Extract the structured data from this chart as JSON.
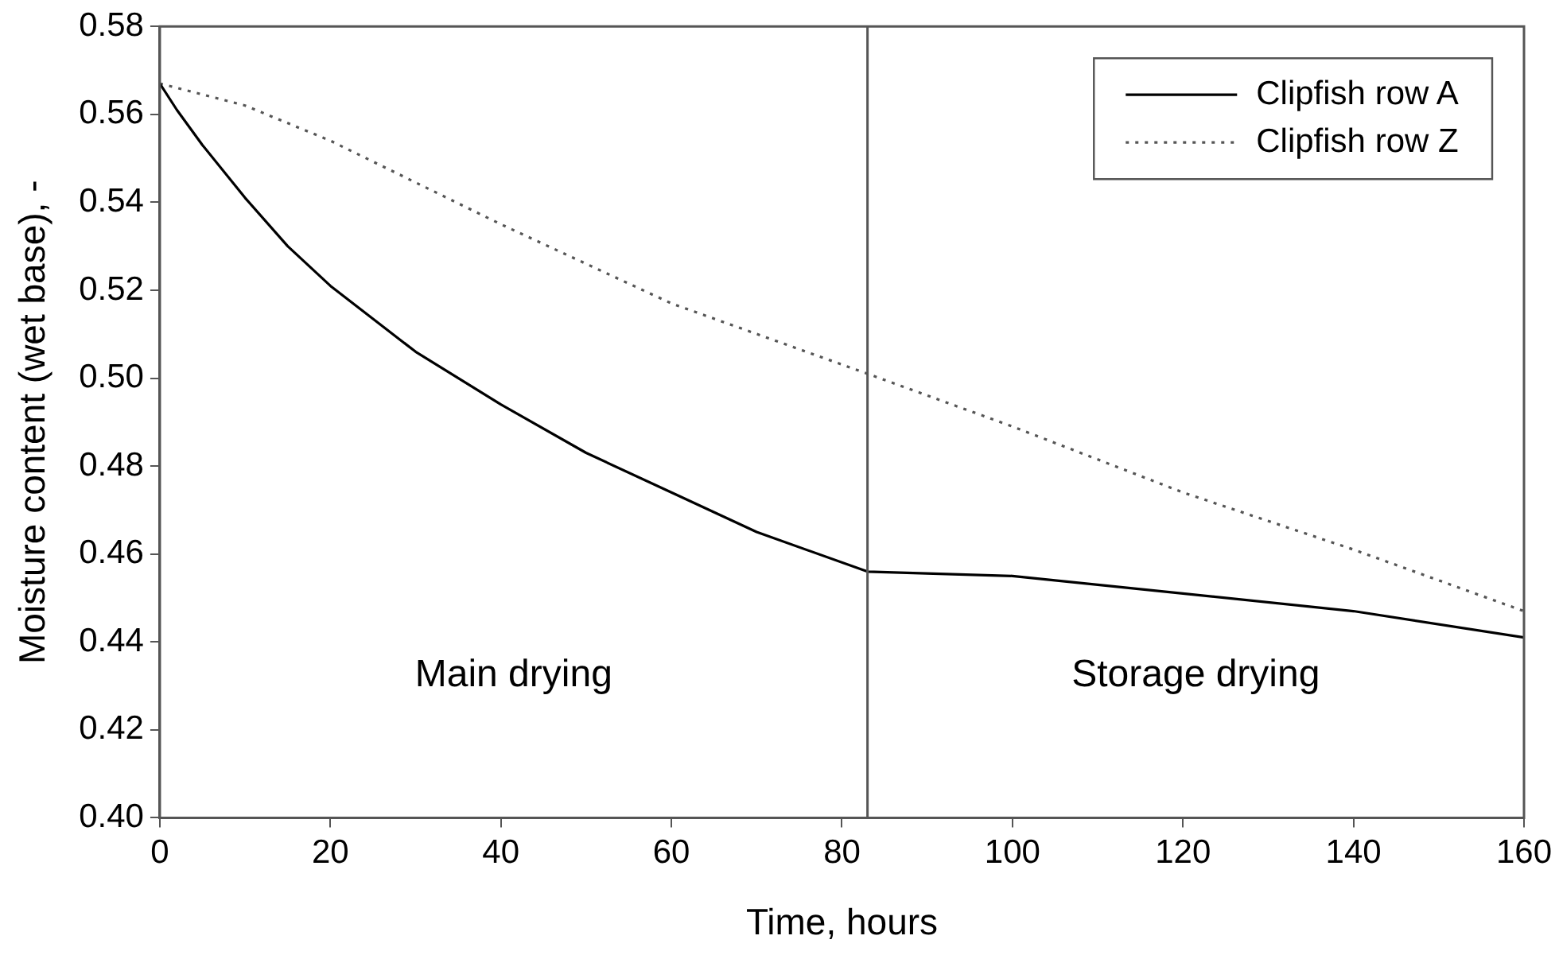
{
  "chart_data": {
    "type": "line",
    "xlabel": "Time, hours",
    "ylabel": "Moisture content (wet base), -",
    "xlim": [
      0,
      160
    ],
    "xticks": [
      0,
      20,
      40,
      60,
      80,
      100,
      120,
      140,
      160
    ],
    "ylim": [
      0.4,
      0.58
    ],
    "yticks": [
      {
        "value": 0.4,
        "label": "0.40"
      },
      {
        "value": 0.42,
        "label": "0.42"
      },
      {
        "value": 0.44,
        "label": "0.44"
      },
      {
        "value": 0.46,
        "label": "0.46"
      },
      {
        "value": 0.48,
        "label": "0.48"
      },
      {
        "value": 0.5,
        "label": "0.50"
      },
      {
        "value": 0.52,
        "label": "0.52"
      },
      {
        "value": 0.54,
        "label": "0.54"
      },
      {
        "value": 0.56,
        "label": "0.56"
      },
      {
        "value": 0.58,
        "label": "0.58"
      }
    ],
    "grid": false,
    "legend": "top right",
    "marker": "none",
    "series": [
      {
        "name": "Clipfish row A",
        "color": "#000000",
        "line_style": "solid",
        "x": [
          0,
          2,
          5,
          10,
          15,
          20,
          30,
          40,
          50,
          60,
          70,
          83,
          100,
          120,
          140,
          160
        ],
        "values": [
          0.567,
          0.561,
          0.553,
          0.541,
          0.53,
          0.521,
          0.506,
          0.494,
          0.483,
          0.474,
          0.465,
          0.456,
          0.455,
          0.451,
          0.447,
          0.441
        ]
      },
      {
        "name": "Clipfish row Z",
        "color": "#555555",
        "line_style": "dotted",
        "x": [
          0,
          10,
          20,
          40,
          60,
          83,
          100,
          120,
          140,
          160
        ],
        "values": [
          0.567,
          0.562,
          0.554,
          0.535,
          0.517,
          0.501,
          0.489,
          0.474,
          0.461,
          0.447
        ]
      }
    ],
    "ref_lines": [
      {
        "axis": "x",
        "value": 83,
        "color": "#555555"
      }
    ],
    "annotations": [
      "Main drying",
      "Storage drying"
    ]
  }
}
